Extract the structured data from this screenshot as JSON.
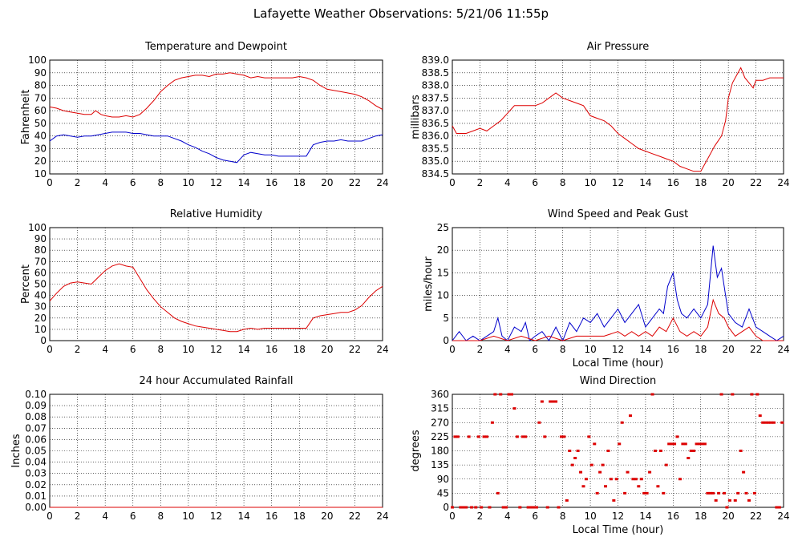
{
  "page_title": "Lafayette Weather Observations: 5/21/06 11:55p",
  "chart_data": [
    {
      "id": "temp",
      "type": "line",
      "title": "Temperature and Dewpoint",
      "xlabel": "",
      "ylabel": "Fahrenheit",
      "xlim": [
        0,
        24
      ],
      "ylim": [
        10,
        100
      ],
      "xticks": [
        0,
        2,
        4,
        6,
        8,
        10,
        12,
        14,
        16,
        18,
        20,
        22,
        24
      ],
      "yticks": [
        10,
        20,
        30,
        40,
        50,
        60,
        70,
        80,
        90,
        100
      ],
      "grid": true,
      "series": [
        {
          "color": "#dd0000",
          "x": [
            0,
            0.5,
            1,
            1.5,
            2,
            2.5,
            3,
            3.3,
            3.7,
            4,
            4.5,
            5,
            5.5,
            6,
            6.5,
            7,
            7.5,
            8,
            8.5,
            9,
            9.5,
            10,
            10.5,
            11,
            11.5,
            12,
            12.5,
            13,
            13.5,
            14,
            14.5,
            15,
            15.5,
            16,
            16.5,
            17,
            17.5,
            18,
            18.5,
            19,
            19.5,
            20,
            20.5,
            21,
            21.5,
            22,
            22.5,
            23,
            23.5,
            24
          ],
          "values": [
            63,
            62,
            60,
            59,
            58,
            57,
            57,
            60,
            57,
            56,
            55,
            55,
            56,
            55,
            57,
            62,
            68,
            75,
            80,
            84,
            86,
            87,
            88,
            88,
            87,
            89,
            89,
            90,
            89,
            88,
            86,
            87,
            86,
            86,
            86,
            86,
            86,
            87,
            86,
            84,
            80,
            77,
            76,
            75,
            74,
            73,
            71,
            68,
            64,
            61
          ]
        },
        {
          "color": "#0000cc",
          "x": [
            0,
            0.5,
            1,
            1.5,
            2,
            2.5,
            3,
            3.5,
            4,
            4.5,
            5,
            5.5,
            6,
            6.5,
            7,
            7.5,
            8,
            8.5,
            9,
            9.5,
            10,
            10.5,
            11,
            11.5,
            12,
            12.5,
            13,
            13.5,
            14,
            14.5,
            15,
            15.5,
            16,
            16.5,
            17,
            17.5,
            18,
            18.5,
            19,
            19.5,
            20,
            20.5,
            21,
            21.5,
            22,
            22.5,
            23,
            23.5,
            24
          ],
          "values": [
            36,
            40,
            41,
            40,
            39,
            40,
            40,
            41,
            42,
            43,
            43,
            43,
            42,
            42,
            41,
            40,
            40,
            40,
            38,
            36,
            33,
            31,
            28,
            26,
            23,
            21,
            20,
            19,
            25,
            27,
            26,
            25,
            25,
            24,
            24,
            24,
            24,
            24,
            33,
            35,
            36,
            36,
            37,
            36,
            36,
            36,
            38,
            40,
            41
          ]
        }
      ]
    },
    {
      "id": "pressure",
      "type": "line",
      "title": "Air Pressure",
      "xlabel": "",
      "ylabel": "millibars",
      "xlim": [
        0,
        24
      ],
      "ylim": [
        834.5,
        839.0
      ],
      "xticks": [
        0,
        2,
        4,
        6,
        8,
        10,
        12,
        14,
        16,
        18,
        20,
        22,
        24
      ],
      "yticks": [
        "834.5",
        "835.0",
        "835.5",
        "836.0",
        "836.5",
        "837.0",
        "837.5",
        "838.0",
        "838.5",
        "839.0"
      ],
      "grid": true,
      "series": [
        {
          "color": "#dd0000",
          "x": [
            0,
            0.3,
            0.6,
            1,
            1.5,
            2,
            2.5,
            3,
            3.5,
            4,
            4.5,
            5,
            5.5,
            6,
            6.5,
            7,
            7.5,
            8,
            8.5,
            9,
            9.5,
            10,
            10.5,
            11,
            11.5,
            12,
            12.5,
            13,
            13.5,
            14,
            14.5,
            15,
            15.5,
            16,
            16.5,
            17,
            17.5,
            18,
            18.5,
            19,
            19.5,
            19.8,
            20,
            20.3,
            20.6,
            20.9,
            21.2,
            21.5,
            21.8,
            22,
            22.5,
            23,
            23.5,
            24
          ],
          "values": [
            836.4,
            836.1,
            836.1,
            836.1,
            836.2,
            836.3,
            836.2,
            836.4,
            836.6,
            836.9,
            837.2,
            837.2,
            837.2,
            837.2,
            837.3,
            837.5,
            837.7,
            837.5,
            837.4,
            837.3,
            837.2,
            836.8,
            836.7,
            836.6,
            836.4,
            836.1,
            835.9,
            835.7,
            835.5,
            835.4,
            835.3,
            835.2,
            835.1,
            835.0,
            834.8,
            834.7,
            834.6,
            834.6,
            835.1,
            835.6,
            836.0,
            836.6,
            837.5,
            838.1,
            838.4,
            838.7,
            838.3,
            838.1,
            837.9,
            838.2,
            838.2,
            838.3,
            838.3,
            838.3
          ]
        }
      ]
    },
    {
      "id": "humidity",
      "type": "line",
      "title": "Relative Humidity",
      "xlabel": "",
      "ylabel": "Percent",
      "xlim": [
        0,
        24
      ],
      "ylim": [
        0,
        100
      ],
      "xticks": [
        0,
        2,
        4,
        6,
        8,
        10,
        12,
        14,
        16,
        18,
        20,
        22,
        24
      ],
      "yticks": [
        0,
        10,
        20,
        30,
        40,
        50,
        60,
        70,
        80,
        90,
        100
      ],
      "grid": true,
      "series": [
        {
          "color": "#dd0000",
          "x": [
            0,
            0.5,
            1,
            1.5,
            2,
            2.5,
            3,
            3.5,
            4,
            4.5,
            5,
            5.5,
            6,
            6.5,
            7,
            7.5,
            8,
            8.5,
            9,
            9.5,
            10,
            10.5,
            11,
            11.5,
            12,
            12.5,
            13,
            13.5,
            14,
            14.5,
            15,
            15.5,
            16,
            16.5,
            17,
            17.5,
            18,
            18.5,
            19,
            19.5,
            20,
            20.5,
            21,
            21.5,
            22,
            22.5,
            23,
            23.5,
            24
          ],
          "values": [
            35,
            42,
            48,
            51,
            52,
            51,
            50,
            56,
            62,
            66,
            68,
            66,
            65,
            55,
            45,
            37,
            30,
            25,
            20,
            17,
            15,
            13,
            12,
            11,
            10,
            9,
            8,
            8,
            10,
            11,
            10,
            11,
            11,
            11,
            11,
            11,
            11,
            11,
            20,
            22,
            23,
            24,
            25,
            25,
            27,
            31,
            38,
            44,
            48
          ]
        }
      ]
    },
    {
      "id": "wind",
      "type": "line",
      "title": "Wind Speed and Peak Gust",
      "xlabel": "Local Time (hour)",
      "ylabel": "miles/hour",
      "xlim": [
        0,
        24
      ],
      "ylim": [
        0,
        25
      ],
      "xticks": [
        0,
        2,
        4,
        6,
        8,
        10,
        12,
        14,
        16,
        18,
        20,
        22,
        24
      ],
      "yticks": [
        0,
        5,
        10,
        15,
        20,
        25
      ],
      "grid": true,
      "series": [
        {
          "color": "#0000cc",
          "x": [
            0,
            0.5,
            1,
            1.5,
            2,
            2.5,
            3,
            3.3,
            3.6,
            4,
            4.5,
            5,
            5.3,
            5.6,
            6,
            6.5,
            7,
            7.5,
            8,
            8.5,
            9,
            9.5,
            10,
            10.5,
            11,
            11.5,
            12,
            12.5,
            13,
            13.5,
            14,
            14.5,
            15,
            15.3,
            15.6,
            16,
            16.3,
            16.6,
            17,
            17.5,
            18,
            18.5,
            18.9,
            19.2,
            19.5,
            19.8,
            20,
            20.5,
            21,
            21.5,
            22,
            22.5,
            23,
            23.5,
            24
          ],
          "values": [
            0,
            2,
            0,
            1,
            0,
            1,
            2,
            5,
            1,
            0,
            3,
            2,
            4,
            0,
            1,
            2,
            0,
            3,
            0,
            4,
            2,
            5,
            4,
            6,
            3,
            5,
            7,
            4,
            6,
            8,
            3,
            5,
            7,
            6,
            12,
            15,
            9,
            6,
            5,
            7,
            5,
            8,
            21,
            14,
            16,
            10,
            6,
            4,
            3,
            7,
            3,
            2,
            1,
            0,
            1
          ]
        },
        {
          "color": "#dd0000",
          "x": [
            0,
            1,
            2,
            3,
            4,
            5,
            6,
            7,
            8,
            9,
            10,
            11,
            12,
            12.5,
            13,
            13.5,
            14,
            14.5,
            15,
            15.5,
            16,
            16.5,
            17,
            17.5,
            18,
            18.5,
            18.9,
            19.3,
            19.7,
            20,
            20.5,
            21,
            21.5,
            22,
            22.5,
            23,
            24
          ],
          "values": [
            0,
            0,
            0,
            1,
            0,
            1,
            0,
            1,
            0,
            1,
            1,
            1,
            2,
            1,
            2,
            1,
            2,
            1,
            3,
            2,
            5,
            2,
            1,
            2,
            1,
            3,
            9,
            6,
            5,
            3,
            1,
            2,
            3,
            1,
            0,
            0,
            0
          ]
        }
      ]
    },
    {
      "id": "rain",
      "type": "line",
      "title": "24 hour Accumulated Rainfall",
      "xlabel": "",
      "ylabel": "Inches",
      "xlim": [
        0,
        24
      ],
      "ylim": [
        0,
        0.1
      ],
      "xticks": [
        0,
        2,
        4,
        6,
        8,
        10,
        12,
        14,
        16,
        18,
        20,
        22,
        24
      ],
      "yticks": [
        "0.00",
        "0.01",
        "0.02",
        "0.03",
        "0.04",
        "0.05",
        "0.06",
        "0.07",
        "0.08",
        "0.09",
        "0.10"
      ],
      "grid": true,
      "series": [
        {
          "color": "#dd0000",
          "x": [
            0,
            24
          ],
          "values": [
            0,
            0
          ]
        }
      ]
    },
    {
      "id": "direction",
      "type": "scatter",
      "title": "Wind Direction",
      "xlabel": "Local Time (hour)",
      "ylabel": "degrees",
      "xlim": [
        0,
        24
      ],
      "ylim": [
        0,
        360
      ],
      "xticks": [
        0,
        2,
        4,
        6,
        8,
        10,
        12,
        14,
        16,
        18,
        20,
        22,
        24
      ],
      "yticks": [
        0,
        45,
        90,
        135,
        180,
        225,
        270,
        315,
        360
      ],
      "grid": true,
      "series": [
        {
          "color": "#dd0000",
          "x": [
            0,
            0.2,
            0.4,
            0.6,
            0.8,
            1.0,
            1.2,
            1.4,
            1.7,
            1.9,
            2.1,
            2.3,
            2.5,
            2.7,
            2.9,
            3.1,
            3.3,
            3.5,
            3.7,
            3.9,
            4.1,
            4.3,
            4.5,
            4.7,
            4.9,
            5.1,
            5.3,
            5.5,
            5.7,
            5.9,
            6.1,
            6.3,
            6.5,
            6.7,
            6.9,
            7.1,
            7.3,
            7.5,
            7.7,
            7.9,
            8.1,
            8.3,
            8.5,
            8.7,
            8.9,
            9.1,
            9.3,
            9.5,
            9.7,
            9.9,
            10.1,
            10.3,
            10.5,
            10.7,
            10.9,
            11.1,
            11.3,
            11.5,
            11.7,
            11.9,
            12.1,
            12.3,
            12.5,
            12.7,
            12.9,
            13.1,
            13.3,
            13.5,
            13.7,
            13.9,
            14.1,
            14.3,
            14.5,
            14.7,
            14.9,
            15.1,
            15.3,
            15.5,
            15.7,
            15.9,
            16.1,
            16.3,
            16.5,
            16.7,
            16.9,
            17.1,
            17.3,
            17.5,
            17.7,
            17.9,
            18.1,
            18.3,
            18.5,
            18.7,
            18.9,
            19.1,
            19.3,
            19.5,
            19.7,
            19.9,
            20.1,
            20.3,
            20.5,
            20.7,
            20.9,
            21.1,
            21.3,
            21.5,
            21.7,
            21.9,
            22.1,
            22.3,
            22.5,
            22.7,
            22.9,
            23.1,
            23.3,
            23.5,
            23.7,
            23.9
          ],
          "values": [
            0,
            225,
            225,
            0,
            0,
            0,
            225,
            0,
            0,
            225,
            0,
            225,
            225,
            0,
            270,
            360,
            45,
            360,
            0,
            0,
            360,
            360,
            315,
            225,
            0,
            225,
            225,
            0,
            0,
            0,
            0,
            270,
            337,
            225,
            0,
            337,
            337,
            337,
            0,
            225,
            225,
            22,
            180,
            135,
            157,
            180,
            112,
            67,
            90,
            225,
            135,
            202,
            45,
            112,
            135,
            67,
            180,
            90,
            22,
            90,
            202,
            270,
            45,
            112,
            292,
            90,
            90,
            67,
            90,
            45,
            45,
            112,
            360,
            180,
            67,
            180,
            45,
            135,
            202,
            202,
            202,
            225,
            90,
            202,
            202,
            157,
            180,
            180,
            202,
            202,
            202,
            202,
            45,
            45,
            45,
            22,
            45,
            360,
            45,
            0,
            22,
            360,
            22,
            45,
            180,
            112,
            45,
            22,
            360,
            45,
            360,
            292,
            270,
            270,
            270,
            270,
            270,
            0,
            0,
            270
          ]
        }
      ]
    }
  ]
}
